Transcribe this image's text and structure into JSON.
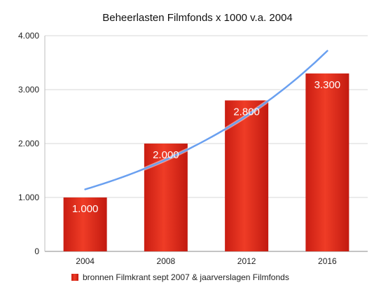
{
  "chart_data": {
    "type": "bar",
    "title": "Beheerlasten Filmfonds x 1000 v.a. 2004",
    "xlabel": "",
    "ylabel": "",
    "categories": [
      "2004",
      "2008",
      "2012",
      "2016"
    ],
    "series": [
      {
        "name": "bronnen Filmkrant sept 2007 & jaarverslagen Filmfonds",
        "values": [
          1000,
          2000,
          2800,
          3300
        ],
        "data_labels": [
          "1.000",
          "2.000",
          "2.800",
          "3.300"
        ],
        "color": "#e0321f"
      }
    ],
    "trendline": {
      "type": "exponential",
      "color": "#6aa0f0",
      "start_value": 1150,
      "end_value": 3720
    },
    "ylim": [
      0,
      4000
    ],
    "yticks": [
      0,
      1000,
      2000,
      3000,
      4000
    ],
    "ytick_labels": [
      "0",
      "1.000",
      "2.000",
      "3.000",
      "4.000"
    ],
    "grid": true,
    "legend_position": "bottom"
  }
}
